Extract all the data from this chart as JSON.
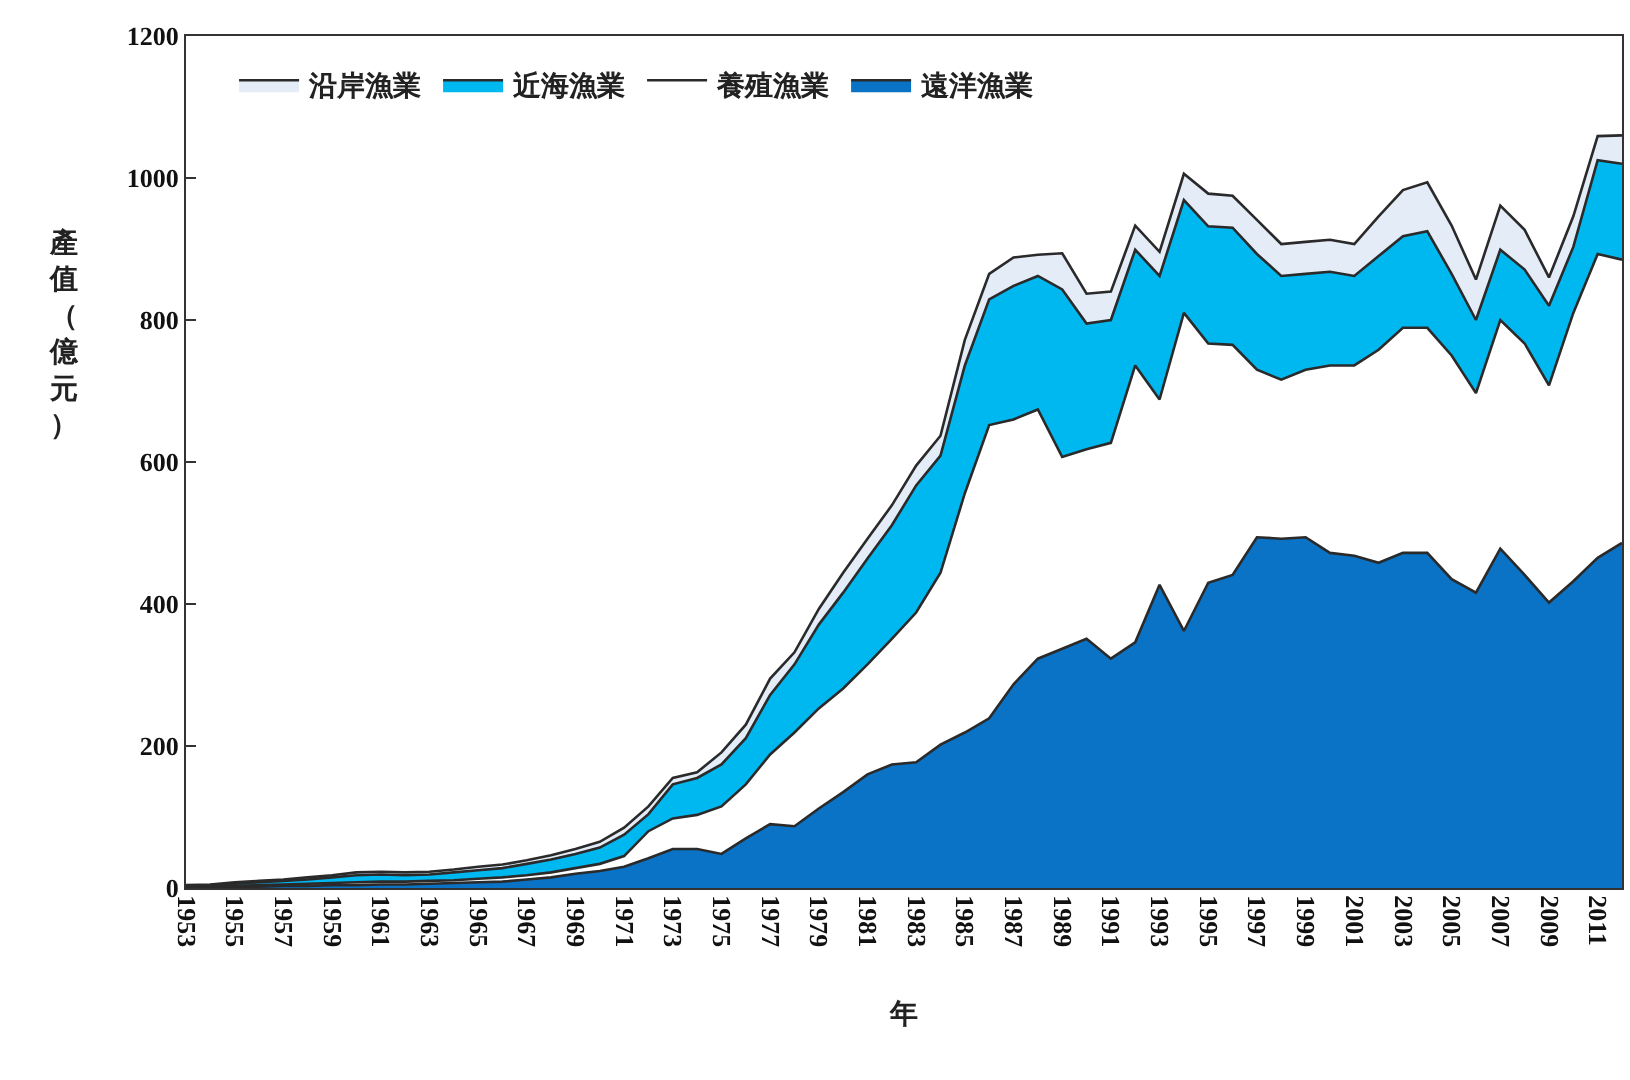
{
  "chart_data": {
    "type": "area",
    "stacked": true,
    "xlabel": "年",
    "ylabel": "產值（億元）",
    "legend": "top left",
    "x": [
      1953,
      1954,
      1955,
      1956,
      1957,
      1958,
      1959,
      1960,
      1961,
      1962,
      1963,
      1964,
      1965,
      1966,
      1967,
      1968,
      1969,
      1970,
      1971,
      1972,
      1973,
      1974,
      1975,
      1976,
      1977,
      1978,
      1979,
      1980,
      1981,
      1982,
      1983,
      1984,
      1985,
      1986,
      1987,
      1988,
      1989,
      1990,
      1991,
      1992,
      1993,
      1994,
      1995,
      1996,
      1997,
      1998,
      1999,
      2000,
      2001,
      2002,
      2003,
      2004,
      2005,
      2006,
      2007,
      2008,
      2009,
      2010,
      2011,
      2012
    ],
    "xlim": [
      1953,
      2012
    ],
    "xticks": [
      1953,
      1955,
      1957,
      1959,
      1961,
      1963,
      1965,
      1967,
      1969,
      1971,
      1973,
      1975,
      1977,
      1979,
      1981,
      1983,
      1985,
      1987,
      1989,
      1991,
      1993,
      1995,
      1997,
      1999,
      2001,
      2003,
      2005,
      2007,
      2009,
      2011
    ],
    "ylim": [
      0,
      1200
    ],
    "yticks": [
      0,
      200,
      400,
      600,
      800,
      1000,
      1200
    ],
    "series": [
      {
        "name": "遠洋漁業",
        "color": "#0a73c6",
        "values": [
          1,
          1,
          2,
          2,
          3,
          3,
          4,
          4,
          5,
          5,
          6,
          7,
          8,
          9,
          12,
          15,
          20,
          24,
          30,
          42,
          55,
          55,
          48,
          70,
          90,
          87,
          112,
          135,
          160,
          174,
          177,
          202,
          219,
          239,
          287,
          323,
          337,
          351,
          323,
          346,
          427,
          362,
          430,
          441,
          494,
          492,
          494,
          472,
          468,
          458,
          472,
          472,
          435,
          416,
          478,
          441,
          402,
          432,
          465,
          486
        ]
      },
      {
        "name": "養殖漁業",
        "color": "#ffffff",
        "values": [
          1,
          1,
          1,
          2,
          2,
          3,
          3,
          4,
          4,
          4,
          4,
          4,
          5,
          6,
          6,
          7,
          8,
          10,
          15,
          38,
          43,
          48,
          67,
          76,
          98,
          132,
          141,
          146,
          155,
          177,
          211,
          242,
          337,
          413,
          373,
          351,
          270,
          267,
          304,
          390,
          261,
          448,
          337,
          324,
          236,
          224,
          236,
          264,
          268,
          300,
          317,
          317,
          315,
          281,
          322,
          326,
          306,
          378,
          428,
          399
        ]
      },
      {
        "name": "近海漁業",
        "color": "#00b8f0",
        "values": [
          1,
          2,
          3,
          4,
          5,
          6,
          8,
          10,
          10,
          9,
          9,
          11,
          12,
          13,
          16,
          18,
          20,
          23,
          30,
          24,
          48,
          52,
          59,
          65,
          84,
          96,
          118,
          135,
          149,
          160,
          179,
          165,
          180,
          177,
          188,
          188,
          236,
          177,
          173,
          163,
          174,
          159,
          165,
          165,
          163,
          146,
          135,
          132,
          126,
          132,
          129,
          136,
          115,
          103,
          99,
          104,
          112,
          93,
          132,
          135
        ]
      },
      {
        "name": "沿岸漁業",
        "color": "#e3ecf7",
        "values": [
          1,
          1,
          2,
          2,
          2,
          3,
          3,
          4,
          4,
          4,
          4,
          4,
          5,
          5,
          5,
          6,
          7,
          8,
          10,
          11,
          9,
          8,
          17,
          19,
          23,
          17,
          22,
          28,
          28,
          28,
          28,
          28,
          36,
          36,
          40,
          30,
          51,
          42,
          40,
          34,
          34,
          37,
          46,
          45,
          48,
          45,
          45,
          45,
          45,
          56,
          65,
          69,
          68,
          57,
          62,
          56,
          40,
          43,
          34,
          40
        ]
      }
    ]
  }
}
